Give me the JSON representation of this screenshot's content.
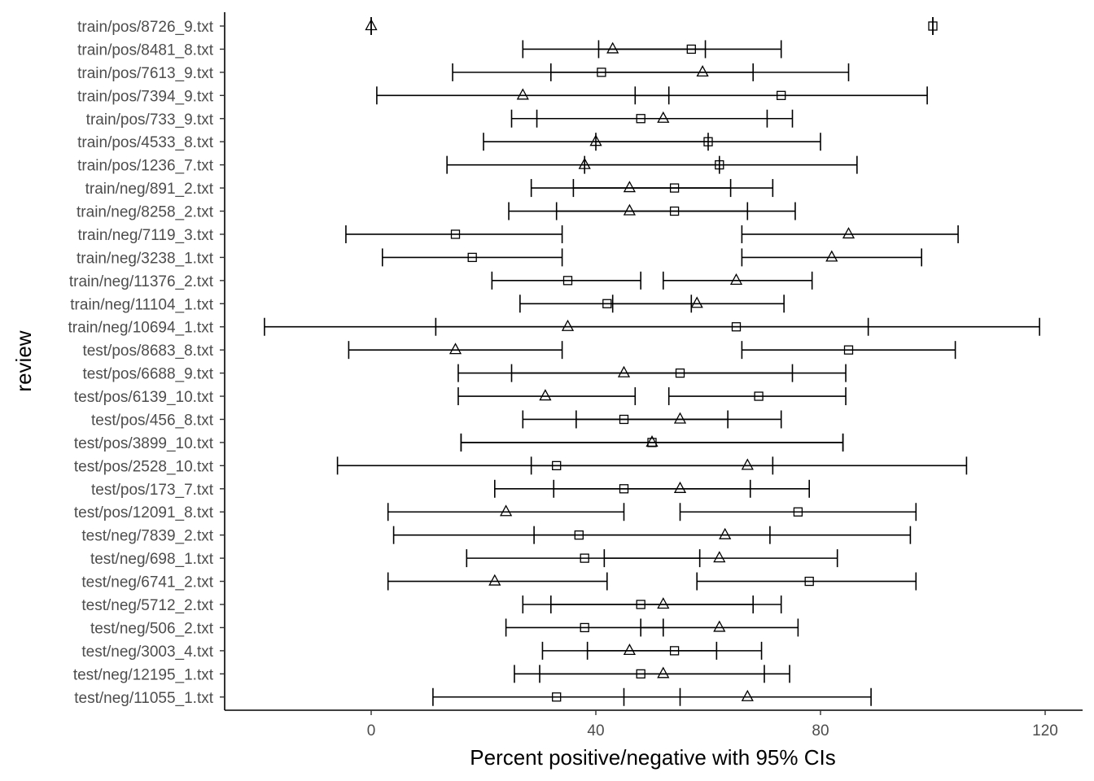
{
  "chart_data": {
    "type": "errorbar",
    "xlabel": "Percent positive/negative with 95% CIs",
    "ylabel": "review",
    "xlim": [
      -13,
      126
    ],
    "x_ticks": [
      0,
      40,
      80,
      120
    ],
    "grid": false,
    "legend": "none",
    "series": [
      {
        "name": "",
        "marker": "triangle"
      },
      {
        "name": "",
        "marker": "square"
      }
    ],
    "rows": [
      {
        "label": "train/pos/8726_9.txt",
        "tri": 0,
        "tri_ci": [
          0,
          0
        ],
        "sq": 100,
        "sq_ci": [
          100,
          100
        ]
      },
      {
        "label": "train/pos/8481_8.txt",
        "tri": 43,
        "tri_ci": [
          27,
          59.5
        ],
        "sq": 57,
        "sq_ci": [
          40.5,
          73
        ]
      },
      {
        "label": "train/pos/7613_9.txt",
        "tri": 59,
        "tri_ci": [
          32,
          85
        ],
        "sq": 41,
        "sq_ci": [
          14.5,
          68
        ]
      },
      {
        "label": "train/pos/7394_9.txt",
        "tri": 27,
        "tri_ci": [
          1,
          53
        ],
        "sq": 73,
        "sq_ci": [
          47,
          99
        ]
      },
      {
        "label": "train/pos/733_9.txt",
        "tri": 52,
        "tri_ci": [
          29.5,
          75
        ],
        "sq": 48,
        "sq_ci": [
          25,
          70.5
        ]
      },
      {
        "label": "train/pos/4533_8.txt",
        "tri": 40,
        "tri_ci": [
          20,
          60
        ],
        "sq": 60,
        "sq_ci": [
          40,
          80
        ]
      },
      {
        "label": "train/pos/1236_7.txt",
        "tri": 38,
        "tri_ci": [
          13.5,
          62
        ],
        "sq": 62,
        "sq_ci": [
          38,
          86.5
        ]
      },
      {
        "label": "train/neg/891_2.txt",
        "tri": 46,
        "tri_ci": [
          28.5,
          64
        ],
        "sq": 54,
        "sq_ci": [
          36,
          71.5
        ]
      },
      {
        "label": "train/neg/8258_2.txt",
        "tri": 46,
        "tri_ci": [
          24.5,
          67
        ],
        "sq": 54,
        "sq_ci": [
          33,
          75.5
        ]
      },
      {
        "label": "train/neg/7119_3.txt",
        "tri": 85,
        "tri_ci": [
          66,
          104.5
        ],
        "sq": 15,
        "sq_ci": [
          -4.5,
          34
        ]
      },
      {
        "label": "train/neg/3238_1.txt",
        "tri": 82,
        "tri_ci": [
          66,
          98
        ],
        "sq": 18,
        "sq_ci": [
          2,
          34
        ]
      },
      {
        "label": "train/neg/11376_2.txt",
        "tri": 65,
        "tri_ci": [
          52,
          78.5
        ],
        "sq": 35,
        "sq_ci": [
          21.5,
          48
        ]
      },
      {
        "label": "train/neg/11104_1.txt",
        "tri": 58,
        "tri_ci": [
          43,
          73.5
        ],
        "sq": 42,
        "sq_ci": [
          26.5,
          57
        ]
      },
      {
        "label": "train/neg/10694_1.txt",
        "tri": 35,
        "tri_ci": [
          -19,
          88.5
        ],
        "sq": 65,
        "sq_ci": [
          11.5,
          119
        ]
      },
      {
        "label": "test/pos/8683_8.txt",
        "tri": 15,
        "tri_ci": [
          -4,
          34
        ],
        "sq": 85,
        "sq_ci": [
          66,
          104
        ]
      },
      {
        "label": "test/pos/6688_9.txt",
        "tri": 45,
        "tri_ci": [
          15.5,
          75
        ],
        "sq": 55,
        "sq_ci": [
          25,
          84.5
        ]
      },
      {
        "label": "test/pos/6139_10.txt",
        "tri": 31,
        "tri_ci": [
          15.5,
          47
        ],
        "sq": 69,
        "sq_ci": [
          53,
          84.5
        ]
      },
      {
        "label": "test/pos/456_8.txt",
        "tri": 55,
        "tri_ci": [
          36.5,
          73
        ],
        "sq": 45,
        "sq_ci": [
          27,
          63.5
        ]
      },
      {
        "label": "test/pos/3899_10.txt",
        "tri": 50,
        "tri_ci": [
          16,
          84
        ],
        "sq": 50,
        "sq_ci": [
          16,
          84
        ]
      },
      {
        "label": "test/pos/2528_10.txt",
        "tri": 67,
        "tri_ci": [
          28.5,
          106
        ],
        "sq": 33,
        "sq_ci": [
          -6,
          71.5
        ]
      },
      {
        "label": "test/pos/173_7.txt",
        "tri": 55,
        "tri_ci": [
          32.5,
          78
        ],
        "sq": 45,
        "sq_ci": [
          22,
          67.5
        ]
      },
      {
        "label": "test/pos/12091_8.txt",
        "tri": 24,
        "tri_ci": [
          3,
          45
        ],
        "sq": 76,
        "sq_ci": [
          55,
          97
        ]
      },
      {
        "label": "test/neg/7839_2.txt",
        "tri": 63,
        "tri_ci": [
          29,
          96
        ],
        "sq": 37,
        "sq_ci": [
          4,
          71
        ]
      },
      {
        "label": "test/neg/698_1.txt",
        "tri": 62,
        "tri_ci": [
          41.5,
          83
        ],
        "sq": 38,
        "sq_ci": [
          17,
          58.5
        ]
      },
      {
        "label": "test/neg/6741_2.txt",
        "tri": 22,
        "tri_ci": [
          3,
          42
        ],
        "sq": 78,
        "sq_ci": [
          58,
          97
        ]
      },
      {
        "label": "test/neg/5712_2.txt",
        "tri": 52,
        "tri_ci": [
          32,
          73
        ],
        "sq": 48,
        "sq_ci": [
          27,
          68
        ]
      },
      {
        "label": "test/neg/506_2.txt",
        "tri": 62,
        "tri_ci": [
          48,
          76
        ],
        "sq": 38,
        "sq_ci": [
          24,
          52
        ]
      },
      {
        "label": "test/neg/3003_4.txt",
        "tri": 46,
        "tri_ci": [
          30.5,
          61.5
        ],
        "sq": 54,
        "sq_ci": [
          38.5,
          69.5
        ]
      },
      {
        "label": "test/neg/12195_1.txt",
        "tri": 52,
        "tri_ci": [
          30,
          74.5
        ],
        "sq": 48,
        "sq_ci": [
          25.5,
          70
        ]
      },
      {
        "label": "test/neg/11055_1.txt",
        "tri": 67,
        "tri_ci": [
          45,
          89
        ],
        "sq": 33,
        "sq_ci": [
          11,
          55
        ]
      }
    ]
  }
}
